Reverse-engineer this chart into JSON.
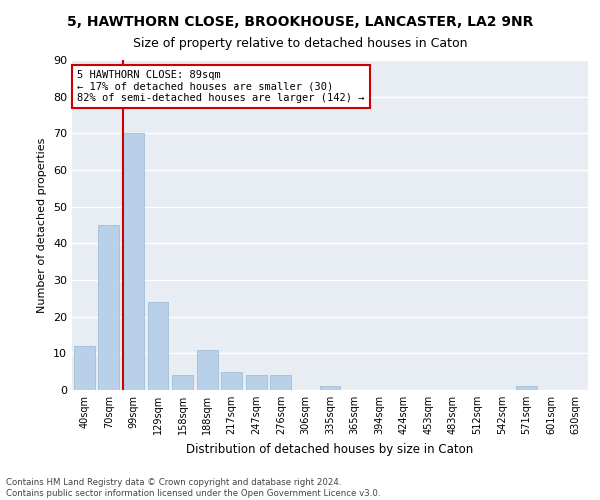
{
  "title": "5, HAWTHORN CLOSE, BROOKHOUSE, LANCASTER, LA2 9NR",
  "subtitle": "Size of property relative to detached houses in Caton",
  "xlabel": "Distribution of detached houses by size in Caton",
  "ylabel": "Number of detached properties",
  "categories": [
    "40sqm",
    "70sqm",
    "99sqm",
    "129sqm",
    "158sqm",
    "188sqm",
    "217sqm",
    "247sqm",
    "276sqm",
    "306sqm",
    "335sqm",
    "365sqm",
    "394sqm",
    "424sqm",
    "453sqm",
    "483sqm",
    "512sqm",
    "542sqm",
    "571sqm",
    "601sqm",
    "630sqm"
  ],
  "values": [
    12,
    45,
    70,
    24,
    4,
    11,
    5,
    4,
    4,
    0,
    1,
    0,
    0,
    0,
    0,
    0,
    0,
    0,
    1,
    0,
    0
  ],
  "bar_color": "#b8d0e8",
  "bar_edge_color": "#9ab8d4",
  "annotation_label": "5 HAWTHORN CLOSE: 89sqm",
  "annotation_line1": "← 17% of detached houses are smaller (30)",
  "annotation_line2": "82% of semi-detached houses are larger (142) →",
  "annotation_box_color": "#ffffff",
  "annotation_box_edge": "#cc0000",
  "vline_color": "#cc0000",
  "vline_x": 2,
  "ylim": [
    0,
    90
  ],
  "yticks": [
    0,
    10,
    20,
    30,
    40,
    50,
    60,
    70,
    80,
    90
  ],
  "bg_color": "#e8edf4",
  "title_fontsize": 10,
  "subtitle_fontsize": 9,
  "footer1": "Contains HM Land Registry data © Crown copyright and database right 2024.",
  "footer2": "Contains public sector information licensed under the Open Government Licence v3.0."
}
